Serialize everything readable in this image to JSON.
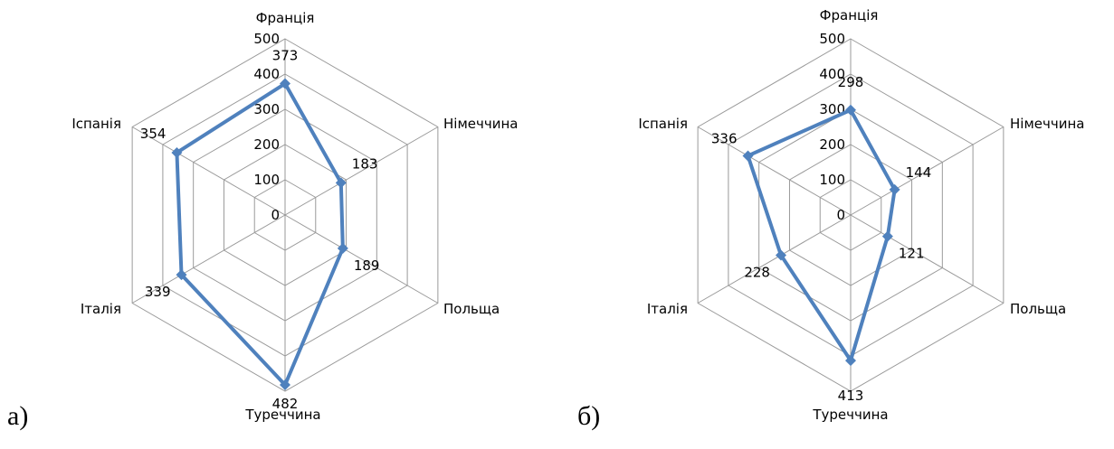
{
  "figure": {
    "panel_labels": [
      "а)",
      "б)"
    ]
  },
  "colors": {
    "series": "#4f81bd",
    "grid": "#9a9a9a"
  },
  "chart_data": [
    {
      "type": "radar",
      "panel": "а)",
      "categories": [
        "Франція",
        "Німеччина",
        "Польща",
        "Туреччина",
        "Італія",
        "Іспанія"
      ],
      "values": [
        373,
        183,
        189,
        482,
        339,
        354
      ],
      "rlim": [
        0,
        500
      ],
      "rticks": [
        0,
        100,
        200,
        300,
        400,
        500
      ],
      "grid": true,
      "legend": "none",
      "title": "",
      "marker": "diamond"
    },
    {
      "type": "radar",
      "panel": "б)",
      "categories": [
        "Франція",
        "Німеччина",
        "Польща",
        "Туреччина",
        "Італія",
        "Іспанія"
      ],
      "values": [
        298,
        144,
        121,
        413,
        228,
        336
      ],
      "rlim": [
        0,
        500
      ],
      "rticks": [
        0,
        100,
        200,
        300,
        400,
        500
      ],
      "grid": true,
      "legend": "none",
      "title": "",
      "marker": "diamond"
    }
  ]
}
